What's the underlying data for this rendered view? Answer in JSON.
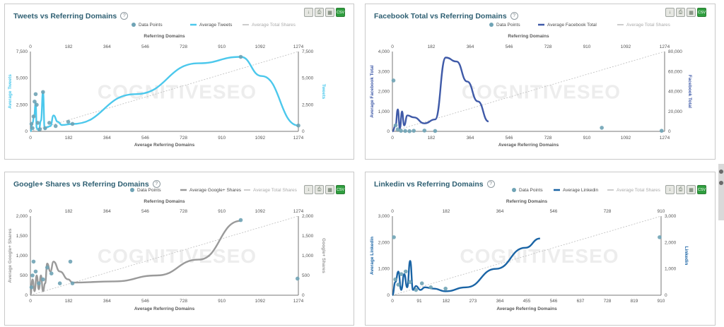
{
  "colors": {
    "tweets": "#4cc8ec",
    "facebook": "#3f5aa8",
    "googleplus": "#9a9a9a",
    "linkedin": "#1a64a5",
    "points": "#6fa3b5",
    "trend": "#bdbdbd"
  },
  "watermark": "COGNITIVESEO",
  "toolbar_icons": [
    "download-icon",
    "print-icon",
    "table-icon",
    "csv-icon"
  ],
  "toolbar_green_label": "CSV",
  "chart_data": [
    {
      "id": "tweets",
      "type": "scatter",
      "title": "Tweets vs Referring Domains",
      "legend": [
        "Data Points",
        "Average Tweets",
        "Average Total Shares"
      ],
      "top_axis_label": "Referring Domains",
      "xlabel": "Average Referring Domains",
      "ylabel_left": "Average Tweets",
      "ylabel_right": "Tweets",
      "x_ticks": [
        "0",
        "182",
        "364",
        "546",
        "728",
        "910",
        "1092",
        "1274"
      ],
      "top_ticks": [
        "0",
        "182",
        "364",
        "546",
        "728",
        "910",
        "1092",
        "1274"
      ],
      "y_ticks_left": [
        "0",
        "2,500",
        "5,000",
        "7,500"
      ],
      "y_ticks_right": [
        "0",
        "2,500",
        "5,000",
        "7,500"
      ],
      "xlim": [
        0,
        1274
      ],
      "ylim": [
        0,
        7500
      ],
      "trend_end": 7500,
      "points": [
        [
          5,
          700
        ],
        [
          10,
          300
        ],
        [
          15,
          1400
        ],
        [
          20,
          2800
        ],
        [
          25,
          3500
        ],
        [
          30,
          2500
        ],
        [
          35,
          800
        ],
        [
          45,
          200
        ],
        [
          60,
          3700
        ],
        [
          70,
          300
        ],
        [
          90,
          800
        ],
        [
          120,
          500
        ],
        [
          180,
          900
        ],
        [
          200,
          700
        ],
        [
          1000,
          7000
        ],
        [
          1274,
          550
        ]
      ],
      "avg_line": [
        [
          0,
          0
        ],
        [
          10,
          800
        ],
        [
          18,
          1500
        ],
        [
          25,
          2700
        ],
        [
          30,
          300
        ],
        [
          40,
          100
        ],
        [
          50,
          1000
        ],
        [
          60,
          3700
        ],
        [
          68,
          200
        ],
        [
          80,
          400
        ],
        [
          95,
          500
        ],
        [
          110,
          1500
        ],
        [
          130,
          900
        ],
        [
          150,
          600
        ],
        [
          200,
          700
        ],
        [
          500,
          3500
        ],
        [
          800,
          6400
        ],
        [
          1000,
          7000
        ],
        [
          1100,
          5200
        ],
        [
          1274,
          550
        ]
      ]
    },
    {
      "id": "facebook",
      "type": "scatter",
      "title": "Facebook Total vs Referring Domains",
      "legend": [
        "Data Points",
        "Average Facebook Total",
        "Average Total Shares"
      ],
      "top_axis_label": "Referring Domains",
      "xlabel": "Average Referring Domains",
      "ylabel_left": "Average Facebook Total",
      "ylabel_right": "Facebook Total",
      "x_ticks": [
        "0",
        "182",
        "364",
        "546",
        "728",
        "910",
        "1092",
        "1274"
      ],
      "top_ticks": [
        "0",
        "182",
        "364",
        "546",
        "728",
        "910",
        "1092",
        "1274"
      ],
      "y_ticks_left": [
        "0",
        "1,000",
        "2,000",
        "3,000",
        "4,000"
      ],
      "y_ticks_right": [
        "0",
        "20,000",
        "40,000",
        "60,000",
        "80,000"
      ],
      "xlim": [
        0,
        1274
      ],
      "ylim": [
        0,
        4000
      ],
      "trend_end": 4000,
      "points": [
        [
          5,
          2550
        ],
        [
          15,
          300
        ],
        [
          25,
          100
        ],
        [
          40,
          30
        ],
        [
          60,
          20
        ],
        [
          80,
          10
        ],
        [
          100,
          30
        ],
        [
          150,
          40
        ],
        [
          200,
          20
        ],
        [
          980,
          180
        ],
        [
          1260,
          30
        ]
      ],
      "avg_line": [
        [
          0,
          0
        ],
        [
          15,
          300
        ],
        [
          25,
          1100
        ],
        [
          35,
          150
        ],
        [
          45,
          1000
        ],
        [
          55,
          300
        ],
        [
          70,
          800
        ],
        [
          100,
          700
        ],
        [
          150,
          400
        ],
        [
          200,
          600
        ],
        [
          250,
          3700
        ],
        [
          300,
          3500
        ],
        [
          350,
          2500
        ],
        [
          400,
          1500
        ],
        [
          450,
          500
        ]
      ]
    },
    {
      "id": "googleplus",
      "type": "scatter",
      "title": "Google+ Shares vs Referring Domains",
      "legend": [
        "Data Points",
        "Average Google+ Shares",
        "Average Total Shares"
      ],
      "top_axis_label": "Referring Domains",
      "xlabel": "Average Referring Domains",
      "ylabel_left": "Average Google+ Shares",
      "ylabel_right": "Google+ Shares",
      "x_ticks": [
        "0",
        "182",
        "364",
        "546",
        "728",
        "910",
        "1092",
        "1274"
      ],
      "top_ticks": [
        "0",
        "182",
        "364",
        "546",
        "728",
        "910",
        "1092",
        "1274"
      ],
      "y_ticks_left": [
        "0",
        "500",
        "1,000",
        "1,500",
        "2,000"
      ],
      "y_ticks_right": [
        "0",
        "500",
        "1,000",
        "1,500",
        "2,000"
      ],
      "xlim": [
        0,
        1274
      ],
      "ylim": [
        0,
        2000
      ],
      "trend_end": 2000,
      "points": [
        [
          5,
          200
        ],
        [
          10,
          500
        ],
        [
          15,
          850
        ],
        [
          25,
          600
        ],
        [
          40,
          300
        ],
        [
          60,
          400
        ],
        [
          80,
          700
        ],
        [
          100,
          550
        ],
        [
          140,
          300
        ],
        [
          190,
          850
        ],
        [
          200,
          300
        ],
        [
          1000,
          1900
        ],
        [
          1270,
          420
        ]
      ],
      "avg_line": [
        [
          0,
          0
        ],
        [
          10,
          400
        ],
        [
          20,
          100
        ],
        [
          30,
          500
        ],
        [
          40,
          150
        ],
        [
          50,
          500
        ],
        [
          60,
          100
        ],
        [
          70,
          300
        ],
        [
          80,
          800
        ],
        [
          95,
          600
        ],
        [
          110,
          850
        ],
        [
          140,
          600
        ],
        [
          180,
          400
        ],
        [
          200,
          320
        ],
        [
          400,
          350
        ],
        [
          600,
          500
        ],
        [
          800,
          900
        ],
        [
          1000,
          1880
        ]
      ]
    },
    {
      "id": "linkedin",
      "type": "scatter",
      "title": "Linkedin vs Referring Domains",
      "legend": [
        "Data Points",
        "Average Linkedin",
        "Average Total Shares"
      ],
      "top_axis_label": "Referring Domains",
      "xlabel": "Average Referring Domains",
      "ylabel_left": "Average Linkedin",
      "ylabel_right": "Linkedin",
      "x_ticks": [
        "0",
        "91",
        "182",
        "273",
        "364",
        "455",
        "546",
        "637",
        "728",
        "819",
        "910"
      ],
      "top_ticks": [
        "0",
        "182",
        "364",
        "546",
        "728",
        "910"
      ],
      "y_ticks_left": [
        "0",
        "1,000",
        "2,000",
        "3,000"
      ],
      "y_ticks_right": [
        "0",
        "1,000",
        "2,000",
        "3,000"
      ],
      "xlim": [
        0,
        910
      ],
      "ylim": [
        0,
        3000
      ],
      "trend_end": 3000,
      "points": [
        [
          5,
          2200
        ],
        [
          10,
          600
        ],
        [
          20,
          400
        ],
        [
          30,
          800
        ],
        [
          45,
          900
        ],
        [
          60,
          500
        ],
        [
          80,
          200
        ],
        [
          100,
          450
        ],
        [
          130,
          300
        ],
        [
          180,
          250
        ],
        [
          905,
          2200
        ]
      ],
      "avg_line": [
        [
          0,
          0
        ],
        [
          10,
          500
        ],
        [
          20,
          900
        ],
        [
          30,
          200
        ],
        [
          40,
          800
        ],
        [
          50,
          300
        ],
        [
          60,
          1300
        ],
        [
          70,
          200
        ],
        [
          80,
          350
        ],
        [
          95,
          200
        ],
        [
          110,
          300
        ],
        [
          140,
          250
        ],
        [
          180,
          150
        ],
        [
          250,
          300
        ],
        [
          350,
          1000
        ],
        [
          450,
          1800
        ],
        [
          500,
          2150
        ]
      ]
    }
  ]
}
